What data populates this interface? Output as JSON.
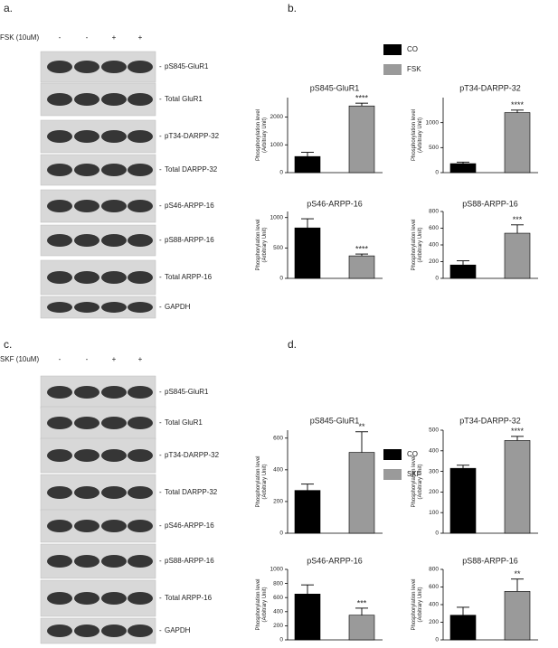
{
  "panels": {
    "a": {
      "label": "a.",
      "treatment": "FSK (10uM)",
      "lanes": [
        "-",
        "-",
        "+",
        "+"
      ],
      "blots": [
        "pS845-GluR1",
        "Total GluR1",
        "pT34-DARPP-32",
        "Total DARPP-32",
        "pS46-ARPP-16",
        "pS88-ARPP-16",
        "Total ARPP-16",
        "GAPDH"
      ]
    },
    "b": {
      "label": "b.",
      "legend": [
        {
          "name": "CO",
          "color": "#000000"
        },
        {
          "name": "FSK",
          "color": "#9a9a9a"
        }
      ]
    },
    "c": {
      "label": "c.",
      "treatment": "SKF (10uM)",
      "lanes": [
        "-",
        "-",
        "+",
        "+"
      ],
      "blots": [
        "pS845-GluR1",
        "Total GluR1",
        "pT34-DARPP-32",
        "Total DARPP-32",
        "pS46-ARPP-16",
        "pS88-ARPP-16",
        "Total ARPP-16",
        "GAPDH"
      ]
    },
    "d": {
      "label": "d.",
      "legend": [
        {
          "name": "CO",
          "color": "#000000"
        },
        {
          "name": "SKF",
          "color": "#9a9a9a"
        }
      ]
    }
  },
  "chart_data": [
    {
      "type": "bar",
      "title": "pS845-GluR1",
      "ylabel": [
        "Phosphorylation level",
        "(Arbitrary Unit)"
      ],
      "categories": [
        null,
        null
      ],
      "values": [
        580,
        2400
      ],
      "errors": [
        150,
        100
      ],
      "significance": "****",
      "ylim": [
        0,
        2700
      ],
      "yticks": [
        0,
        1000,
        2000
      ]
    },
    {
      "type": "bar",
      "title": "pT34-DARPP-32",
      "ylabel": [
        "Phosphorylation level",
        "(Arbitrary Unit)"
      ],
      "categories": [
        null,
        null
      ],
      "values": [
        180,
        1200
      ],
      "errors": [
        30,
        50
      ],
      "significance": "****",
      "ylim": [
        0,
        1500
      ],
      "yticks": [
        0,
        500,
        1000
      ]
    },
    {
      "type": "bar",
      "title": "pS46-ARPP-16",
      "ylabel": [
        "Phosphorylation level",
        "(Arbitrary Unit)"
      ],
      "categories": [
        null,
        null
      ],
      "values": [
        830,
        370
      ],
      "errors": [
        150,
        30
      ],
      "significance": "****",
      "ylim": [
        0,
        1100
      ],
      "yticks": [
        0,
        500,
        1000
      ]
    },
    {
      "type": "bar",
      "title": "pS88-ARPP-16",
      "ylabel": [
        "Phosphorylation level",
        "(Arbitrary Unit)"
      ],
      "categories": [
        null,
        null
      ],
      "values": [
        160,
        540
      ],
      "errors": [
        50,
        100
      ],
      "significance": "***",
      "ylim": [
        0,
        800
      ],
      "yticks": [
        0,
        200,
        400,
        600,
        800
      ]
    },
    {
      "type": "bar",
      "title": "pS845-GluR1",
      "ylabel": [
        "Phosphorylation level",
        "(Arbitrary Unit)"
      ],
      "categories": [
        null,
        null
      ],
      "values": [
        270,
        510
      ],
      "errors": [
        40,
        130
      ],
      "significance": "**",
      "ylim": [
        0,
        650
      ],
      "yticks": [
        0,
        200,
        400,
        600
      ]
    },
    {
      "type": "bar",
      "title": "pT34-DARPP-32",
      "ylabel": [
        "Phosphorylation level",
        "(Arbitrary Unit)"
      ],
      "categories": [
        null,
        null
      ],
      "values": [
        315,
        450
      ],
      "errors": [
        15,
        20
      ],
      "significance": "****",
      "ylim": [
        0,
        500
      ],
      "yticks": [
        0,
        100,
        200,
        300,
        400,
        500
      ]
    },
    {
      "type": "bar",
      "title": "pS46-ARPP-16",
      "ylabel": [
        "Phosphorylation level",
        "(Arbitrary Unit)"
      ],
      "categories": [
        null,
        null
      ],
      "values": [
        650,
        350
      ],
      "errors": [
        130,
        100
      ],
      "significance": "***",
      "ylim": [
        0,
        1000
      ],
      "yticks": [
        0,
        200,
        400,
        600,
        800,
        1000
      ]
    },
    {
      "type": "bar",
      "title": "pS88-ARPP-16",
      "ylabel": [
        "Phosphorylation level",
        "(Arbitrary Unit)"
      ],
      "categories": [
        null,
        null
      ],
      "values": [
        280,
        550
      ],
      "errors": [
        90,
        140
      ],
      "significance": "**",
      "ylim": [
        0,
        800
      ],
      "yticks": [
        0,
        200,
        400,
        600,
        800
      ]
    }
  ]
}
